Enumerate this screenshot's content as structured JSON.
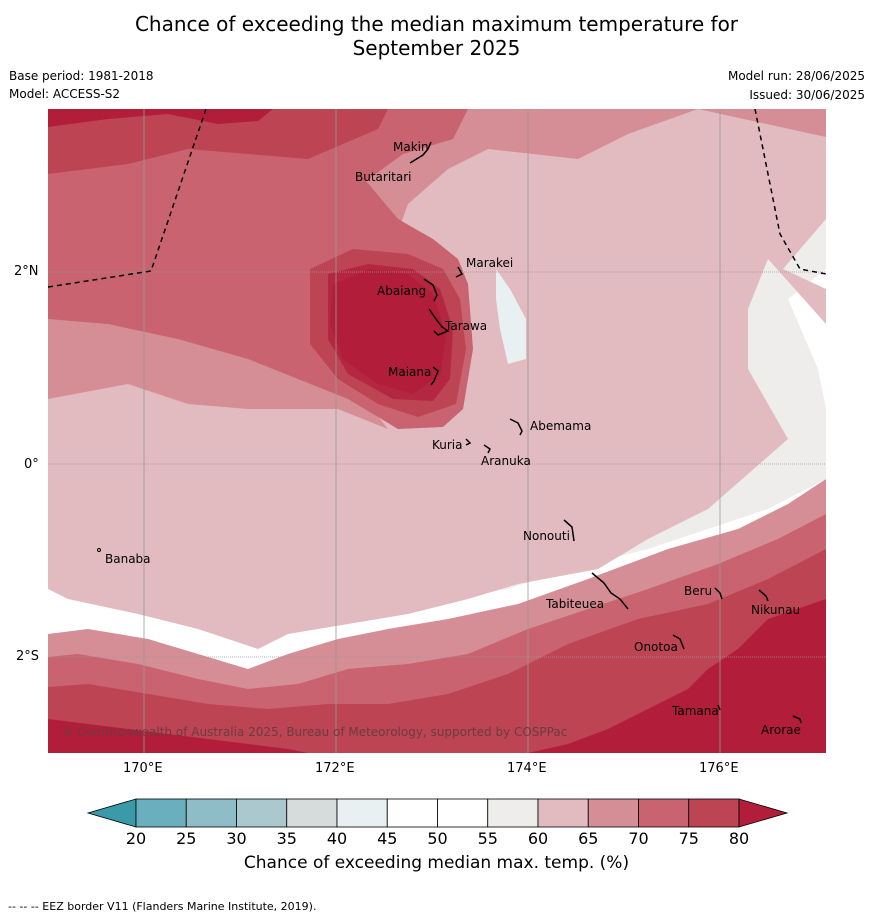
{
  "title_line1": "Chance of exceeding the median maximum temperature for",
  "title_line2": "September 2025",
  "base_period": "Base period: 1981-2018",
  "model": "Model: ACCESS-S2",
  "model_run": "Model run: 28/06/2025",
  "issued": "Issued: 30/06/2025",
  "lat_labels": [
    "2°N",
    "0°",
    "2°S"
  ],
  "lon_labels": [
    "170°E",
    "172°E",
    "174°E",
    "176°E"
  ],
  "places": {
    "makin": "Makin",
    "butaritari": "Butaritari",
    "marakei": "Marakei",
    "abaiang": "Abaiang",
    "tarawa": "Tarawa",
    "maiana": "Maiana",
    "abemama": "Abemama",
    "kuria": "Kuria",
    "aranuka": "Aranuka",
    "nonouti": "Nonouti",
    "banaba": "Banaba",
    "tabiteuea": "Tabiteuea",
    "beru": "Beru",
    "nikunau": "Nikunau",
    "onotoa": "Onotoa",
    "tamana": "Tamana",
    "arorae": "Arorae"
  },
  "copyright": "© Commonwealth of Australia 2025, Bureau of Meteorology, supported by COSPPac",
  "colorbar": {
    "ticks": [
      "20",
      "25",
      "30",
      "35",
      "40",
      "45",
      "50",
      "55",
      "60",
      "65",
      "70",
      "75",
      "80"
    ],
    "colors": [
      "#3a9aa8",
      "#6aafbd",
      "#8ebdc7",
      "#aac8cd",
      "#d6dcdc",
      "#e9f0f2",
      "#ffffff",
      "#ffffff",
      "#eeedec",
      "#e2bbc0",
      "#d58d96",
      "#c8636f",
      "#bd4453",
      "#b21d39"
    ],
    "label": "Chance of exceeding median max. temp. (%)"
  },
  "footer": "--  --  -- EEZ border V11 (Flanders Marine Institute, 2019)."
}
